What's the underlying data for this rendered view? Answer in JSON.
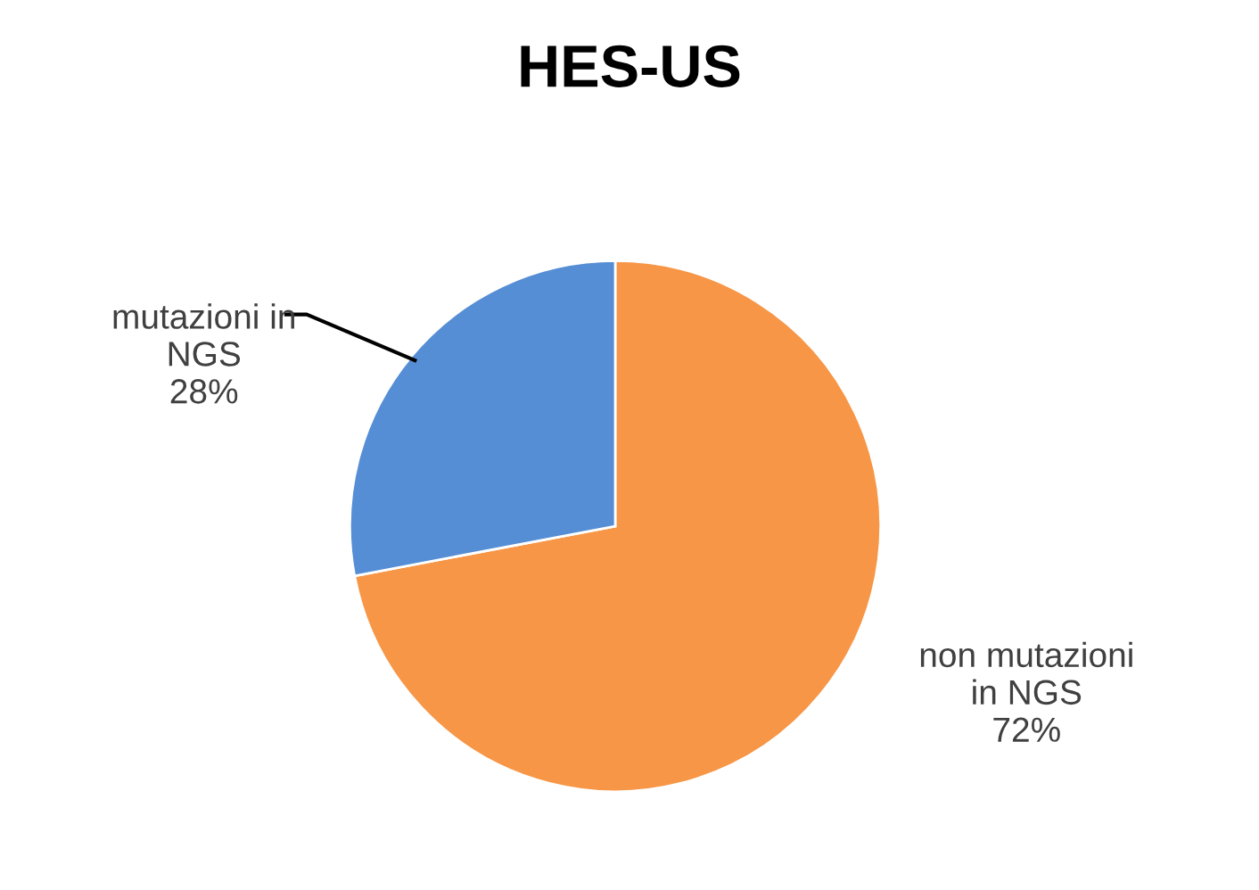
{
  "chart_data": {
    "type": "pie",
    "title": "HES-US",
    "categories": [
      "non mutazioni in NGS",
      "mutazioni in NGS"
    ],
    "values": [
      72,
      28
    ],
    "colors": [
      "#f79646",
      "#558ed5"
    ],
    "value_labels": [
      "72%",
      "28%"
    ],
    "legend": false
  }
}
